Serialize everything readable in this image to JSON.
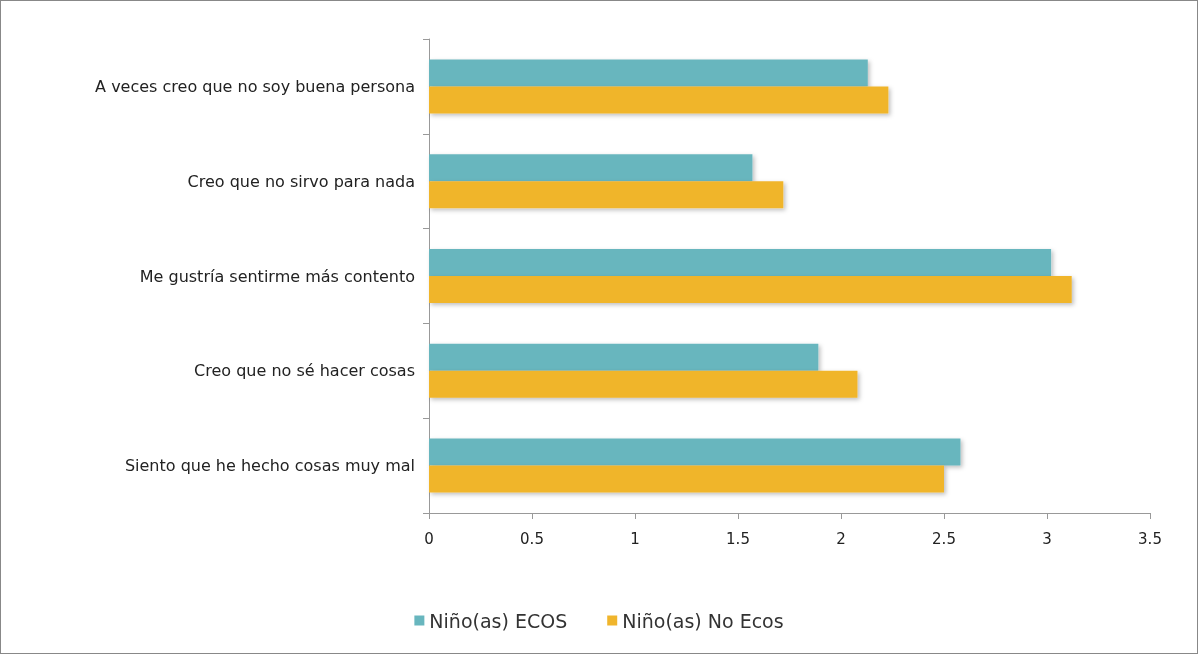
{
  "chart_data": {
    "type": "bar",
    "orientation": "horizontal",
    "categories": [
      "A veces creo que no soy buena persona",
      "Creo que no sirvo para nada",
      "Me gustría sentirme más contento",
      "Creo que no sé hacer cosas",
      "Siento que he hecho cosas muy mal"
    ],
    "series": [
      {
        "name": "Niño(as) ECOS",
        "color": "#68b6be",
        "values": [
          2.13,
          1.57,
          3.02,
          1.89,
          2.58
        ]
      },
      {
        "name": "Niño(as) No Ecos",
        "color": "#f0b52c",
        "values": [
          2.23,
          1.72,
          3.12,
          2.08,
          2.5
        ]
      }
    ],
    "xlim": [
      0,
      3.5
    ],
    "xticks": [
      0,
      0.5,
      1,
      1.5,
      2,
      2.5,
      3,
      3.5
    ],
    "grid": false,
    "legend": "bottom"
  }
}
